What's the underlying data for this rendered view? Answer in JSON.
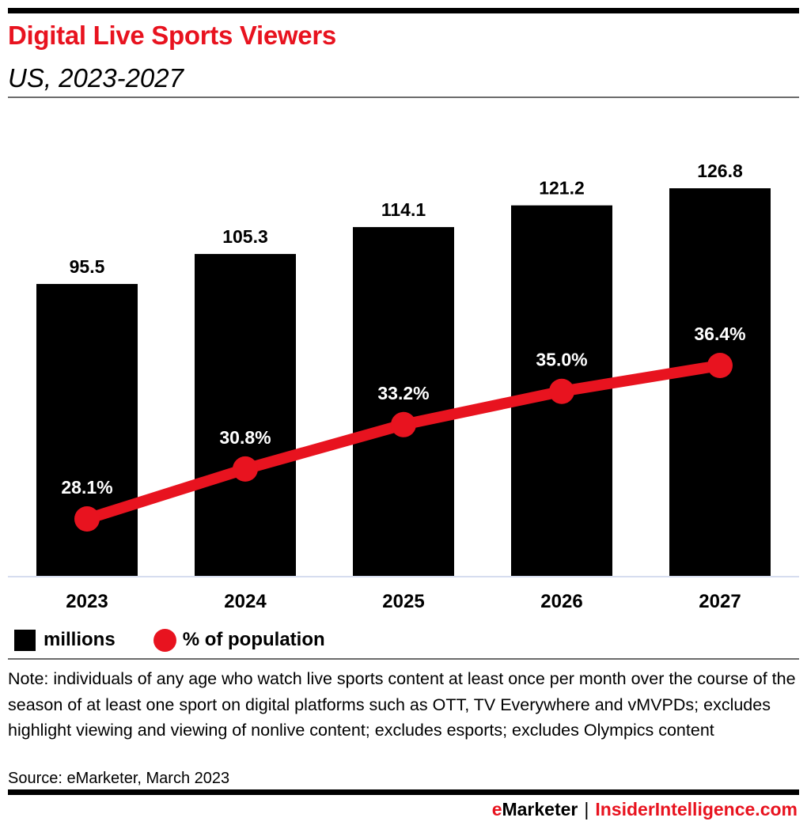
{
  "header": {
    "title": "Digital Live Sports Viewers",
    "subtitle": "US, 2023-2027"
  },
  "legend": [
    {
      "label": "millions",
      "shape": "square",
      "color": "#000000"
    },
    {
      "label": "% of population",
      "shape": "circle",
      "color": "#e8131f"
    }
  ],
  "note": "Note: individuals of any age who watch live sports content at least once per month over the course of the season of at least one sport on digital platforms such as OTT, TV Everywhere and vMVPDs; excludes highlight viewing and viewing of nonlive content; excludes esports; excludes Olympics content",
  "source": "Source: eMarketer, March 2023",
  "footer": {
    "brand_e": "e",
    "brand_rest": "Marketer",
    "separator": "|",
    "site": "InsiderIntelligence.com"
  },
  "colors": {
    "accent": "#e8131f",
    "bar": "#000000",
    "baseline": "#c8d2ea"
  },
  "chart_data": {
    "type": "bar",
    "title": "Digital Live Sports Viewers",
    "subtitle": "US, 2023-2027",
    "categories": [
      "2023",
      "2024",
      "2025",
      "2026",
      "2027"
    ],
    "series": [
      {
        "name": "millions",
        "type": "bar",
        "values": [
          95.5,
          105.3,
          114.1,
          121.2,
          126.8
        ],
        "labels": [
          "95.5",
          "105.3",
          "114.1",
          "121.2",
          "126.8"
        ]
      },
      {
        "name": "% of population",
        "type": "line",
        "values": [
          28.1,
          30.8,
          33.2,
          35.0,
          36.4
        ],
        "labels": [
          "28.1%",
          "30.8%",
          "33.2%",
          "35.0%",
          "36.4%"
        ]
      }
    ],
    "xlabel": "",
    "ylabel": "",
    "grid": false,
    "legend_position": "bottom-left"
  }
}
